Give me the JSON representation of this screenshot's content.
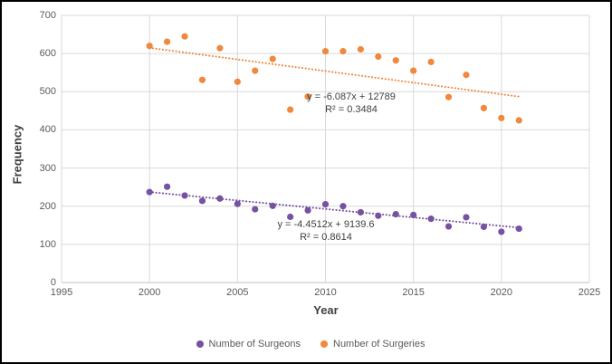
{
  "colors": {
    "background": "#FFFFFF",
    "frame_border": "#000000",
    "grid": "#D9D9D9",
    "axis_line": "#BFBFBF",
    "axis_text": "#595959",
    "title_text": "#404040",
    "equation_text": "#3F3F3F",
    "surgeons_purple": "#7652A0",
    "surgeries_orange": "#F0883E"
  },
  "chart_data": {
    "type": "scatter",
    "title": "",
    "xlabel": "Year",
    "ylabel": "Frequency",
    "xlim": [
      1995,
      2025
    ],
    "ylim": [
      0,
      700
    ],
    "x_ticks": [
      1995,
      2000,
      2005,
      2010,
      2015,
      2020,
      2025
    ],
    "y_ticks": [
      0,
      100,
      200,
      300,
      400,
      500,
      600,
      700
    ],
    "grid": true,
    "legend_position": "bottom",
    "x": [
      2000,
      2001,
      2002,
      2003,
      2004,
      2005,
      2006,
      2007,
      2008,
      2009,
      2010,
      2011,
      2012,
      2013,
      2014,
      2015,
      2016,
      2017,
      2018,
      2019,
      2020,
      2021
    ],
    "series": [
      {
        "name": "Number of Surgeons",
        "color": "#7652A0",
        "marker": "circle",
        "values": [
          237,
          251,
          228,
          214,
          220,
          206,
          192,
          201,
          172,
          189,
          205,
          200,
          184,
          175,
          179,
          177,
          167,
          147,
          171,
          146,
          133,
          141
        ],
        "trend": {
          "style": "dotted",
          "slope": -4.4512,
          "intercept": 9139.6,
          "equation": "y = -4.4512x + 9139.6",
          "r2_label": "R² = 0.8614"
        }
      },
      {
        "name": "Number of Surgeries",
        "color": "#F0883E",
        "marker": "circle",
        "values": [
          620,
          631,
          645,
          531,
          614,
          526,
          555,
          586,
          453,
          487,
          606,
          606,
          611,
          592,
          582,
          555,
          578,
          486,
          544,
          457,
          431,
          425
        ],
        "trend": {
          "style": "dotted",
          "slope": -6.087,
          "intercept": 12789,
          "equation": "y = -6.087x + 12789",
          "r2_label": "R² = 0.3484"
        }
      }
    ]
  }
}
